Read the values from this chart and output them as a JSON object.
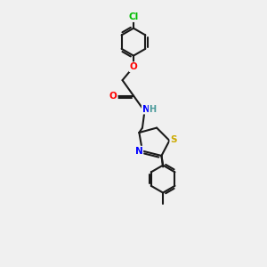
{
  "background_color": "#f0f0f0",
  "bond_color": "#1a1a1a",
  "bond_lw": 1.5,
  "atom_colors": {
    "Cl": "#00bb00",
    "O": "#ff0000",
    "N": "#0000ff",
    "H": "#4a9a9a",
    "S": "#ccaa00",
    "C": "#1a1a1a"
  },
  "figsize": [
    3.0,
    3.0
  ],
  "dpi": 100,
  "xlim": [
    -1.8,
    1.8
  ],
  "ylim": [
    -4.5,
    4.5
  ]
}
